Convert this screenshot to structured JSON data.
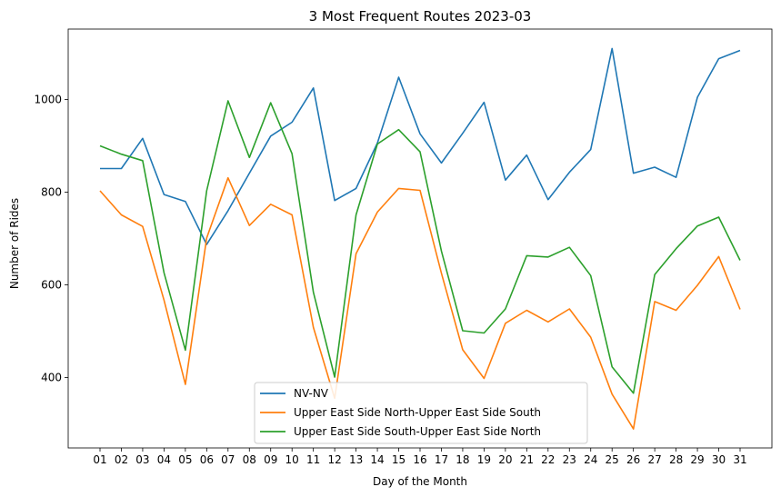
{
  "chart_data": {
    "type": "line",
    "title": "3 Most Frequent Routes 2023-03",
    "xlabel": "Day of the Month",
    "ylabel": "Number of Rides",
    "categories": [
      "01",
      "02",
      "03",
      "04",
      "05",
      "06",
      "07",
      "08",
      "09",
      "10",
      "11",
      "12",
      "13",
      "14",
      "15",
      "16",
      "17",
      "18",
      "19",
      "20",
      "21",
      "22",
      "23",
      "24",
      "25",
      "26",
      "27",
      "28",
      "29",
      "30",
      "31"
    ],
    "yticks": [
      400,
      600,
      800,
      1000
    ],
    "ylim": [
      248,
      1152
    ],
    "grid": false,
    "legend_position": "bottom-center",
    "series": [
      {
        "name": "NV-NV",
        "color": "#1f77b4",
        "values": [
          851,
          851,
          916,
          795,
          780,
          687,
          760,
          841,
          921,
          951,
          1025,
          782,
          808,
          906,
          1048,
          926,
          863,
          927,
          994,
          826,
          880,
          784,
          843,
          892,
          1110,
          841,
          854,
          832,
          1005,
          1088,
          1106
        ]
      },
      {
        "name": "Upper East Side North-Upper East Side South",
        "color": "#ff7f0e",
        "values": [
          803,
          751,
          726,
          567,
          385,
          701,
          831,
          728,
          774,
          751,
          508,
          355,
          667,
          757,
          808,
          804,
          625,
          460,
          398,
          517,
          545,
          520,
          548,
          487,
          364,
          289,
          564,
          545,
          599,
          661,
          547
        ]
      },
      {
        "name": "Upper East Side South-Upper East Side North",
        "color": "#2ca02c",
        "values": [
          900,
          882,
          868,
          626,
          459,
          803,
          997,
          875,
          993,
          883,
          584,
          401,
          751,
          904,
          935,
          887,
          673,
          501,
          496,
          548,
          663,
          660,
          681,
          620,
          423,
          366,
          622,
          678,
          727,
          746,
          653
        ]
      }
    ]
  }
}
